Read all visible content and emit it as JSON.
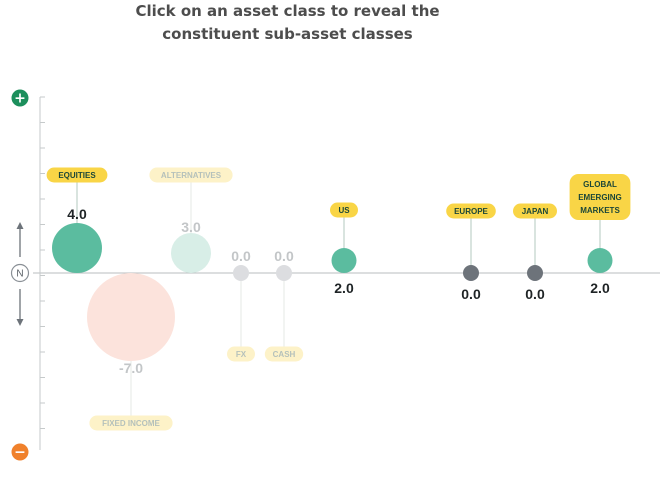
{
  "header": {
    "title_line1": "Click on an asset class to reveal the",
    "title_line2": "constituent sub-asset classes"
  },
  "scale": {
    "top_symbol": "+",
    "neutral_label": "N",
    "bottom_symbol": "−"
  },
  "colors": {
    "positive": "#5bbc9f",
    "positive_faded": "#d8eee7",
    "negative_faded": "#fce3dc",
    "zero": "#6d737a",
    "zero_faded": "#dcdde0",
    "label_bg": "#f9d546",
    "label_bg_faded": "#fdf2c8",
    "label_text": "#1b4638",
    "label_text_faded": "#b5c1bb",
    "plus_icon": "#1c8f5c",
    "minus_icon": "#f0812c"
  },
  "chart_data": {
    "type": "scatter",
    "title": "",
    "xlabel": "",
    "ylabel": "",
    "ylim": [
      -7,
      7
    ],
    "series": [
      {
        "label": "EQUITIES",
        "value": 4.0,
        "value_text": "4.0",
        "state": "active"
      },
      {
        "label": "FIXED INCOME",
        "value": -7.0,
        "value_text": "-7.0",
        "state": "faded"
      },
      {
        "label": "ALTERNATIVES",
        "value": 3.0,
        "value_text": "3.0",
        "state": "faded"
      },
      {
        "label": "FX",
        "value": 0.0,
        "value_text": "0.0",
        "state": "faded"
      },
      {
        "label": "CASH",
        "value": 0.0,
        "value_text": "0.0",
        "state": "faded"
      },
      {
        "label": "US",
        "value": 2.0,
        "value_text": "2.0",
        "state": "active"
      },
      {
        "label": "EUROPE",
        "value": 0.0,
        "value_text": "0.0",
        "state": "active"
      },
      {
        "label": "JAPAN",
        "value": 0.0,
        "value_text": "0.0",
        "state": "active"
      },
      {
        "label": "GLOBAL EMERGING MARKETS",
        "value": 2.0,
        "value_text": "2.0",
        "state": "active"
      }
    ]
  }
}
